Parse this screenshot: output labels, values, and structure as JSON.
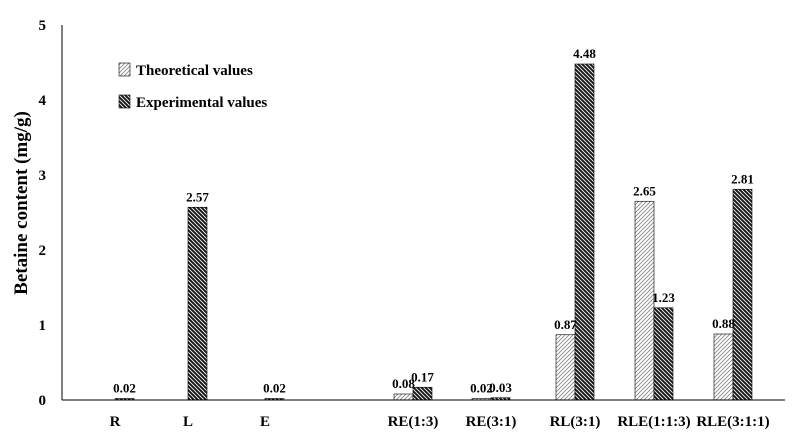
{
  "chart_data": {
    "type": "bar",
    "title": "",
    "xlabel": "",
    "ylabel": "Betaine content (mg/g)",
    "ylim": [
      0,
      5
    ],
    "yticks": [
      "0",
      "1",
      "2",
      "3",
      "4",
      "5"
    ],
    "grid": false,
    "legend_position": "top-left",
    "categories": [
      "R",
      "L",
      "E",
      "RE(1:3)",
      "RE(3:1)",
      "RL(3:1)",
      "RLE(1:1:3)",
      "RLE(3:1:1)"
    ],
    "series": [
      {
        "name": "Theoretical values",
        "pattern": "light-hatch",
        "values": [
          null,
          null,
          null,
          0.08,
          0.02,
          0.87,
          2.65,
          0.88
        ],
        "labels": [
          "",
          "",
          "",
          "0.08",
          "0.02",
          "0.87",
          "2.65",
          "0.88"
        ]
      },
      {
        "name": "Experimental values",
        "pattern": "dark-hatch",
        "values": [
          0.02,
          2.57,
          0.02,
          0.17,
          0.03,
          4.48,
          1.23,
          2.81
        ],
        "labels": [
          "0.02",
          "2.57",
          "0.02",
          "0.17",
          "0.03",
          "4.48",
          "1.23",
          "2.81"
        ]
      }
    ]
  }
}
